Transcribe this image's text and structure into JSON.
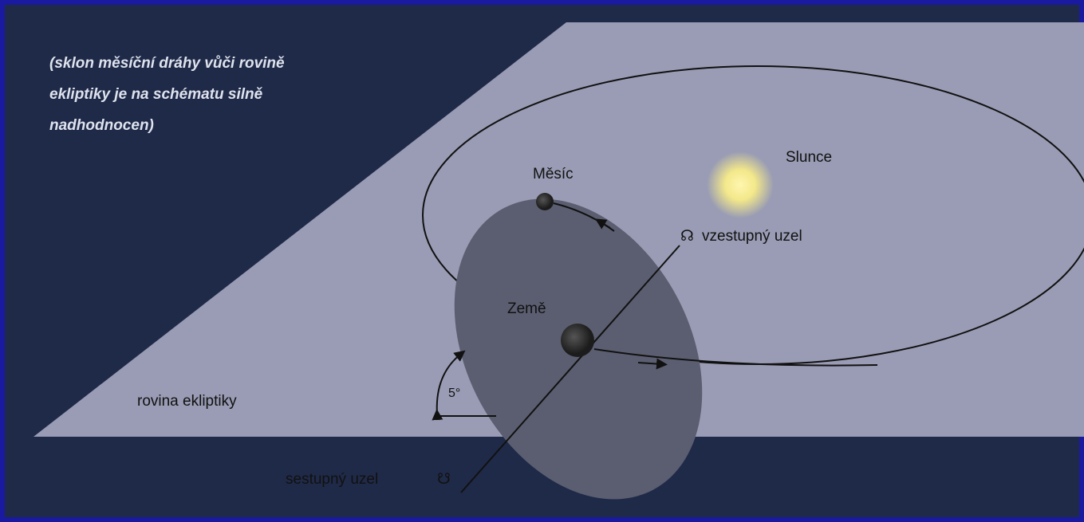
{
  "note": [
    "(sklon měsíční dráhy vůči rovině",
    "ekliptiky je na schématu silně",
    "nadhodnocen)"
  ],
  "labels": {
    "moon": "Měsíc",
    "sun": "Slunce",
    "earth": "Země",
    "plane": "rovina ekliptiky",
    "angle": "5°"
  },
  "nodes": {
    "ascending": {
      "symbol": "☊",
      "label": "vzestupný uzel"
    },
    "descending": {
      "label": "sestupný uzel",
      "symbol": "☋"
    }
  }
}
